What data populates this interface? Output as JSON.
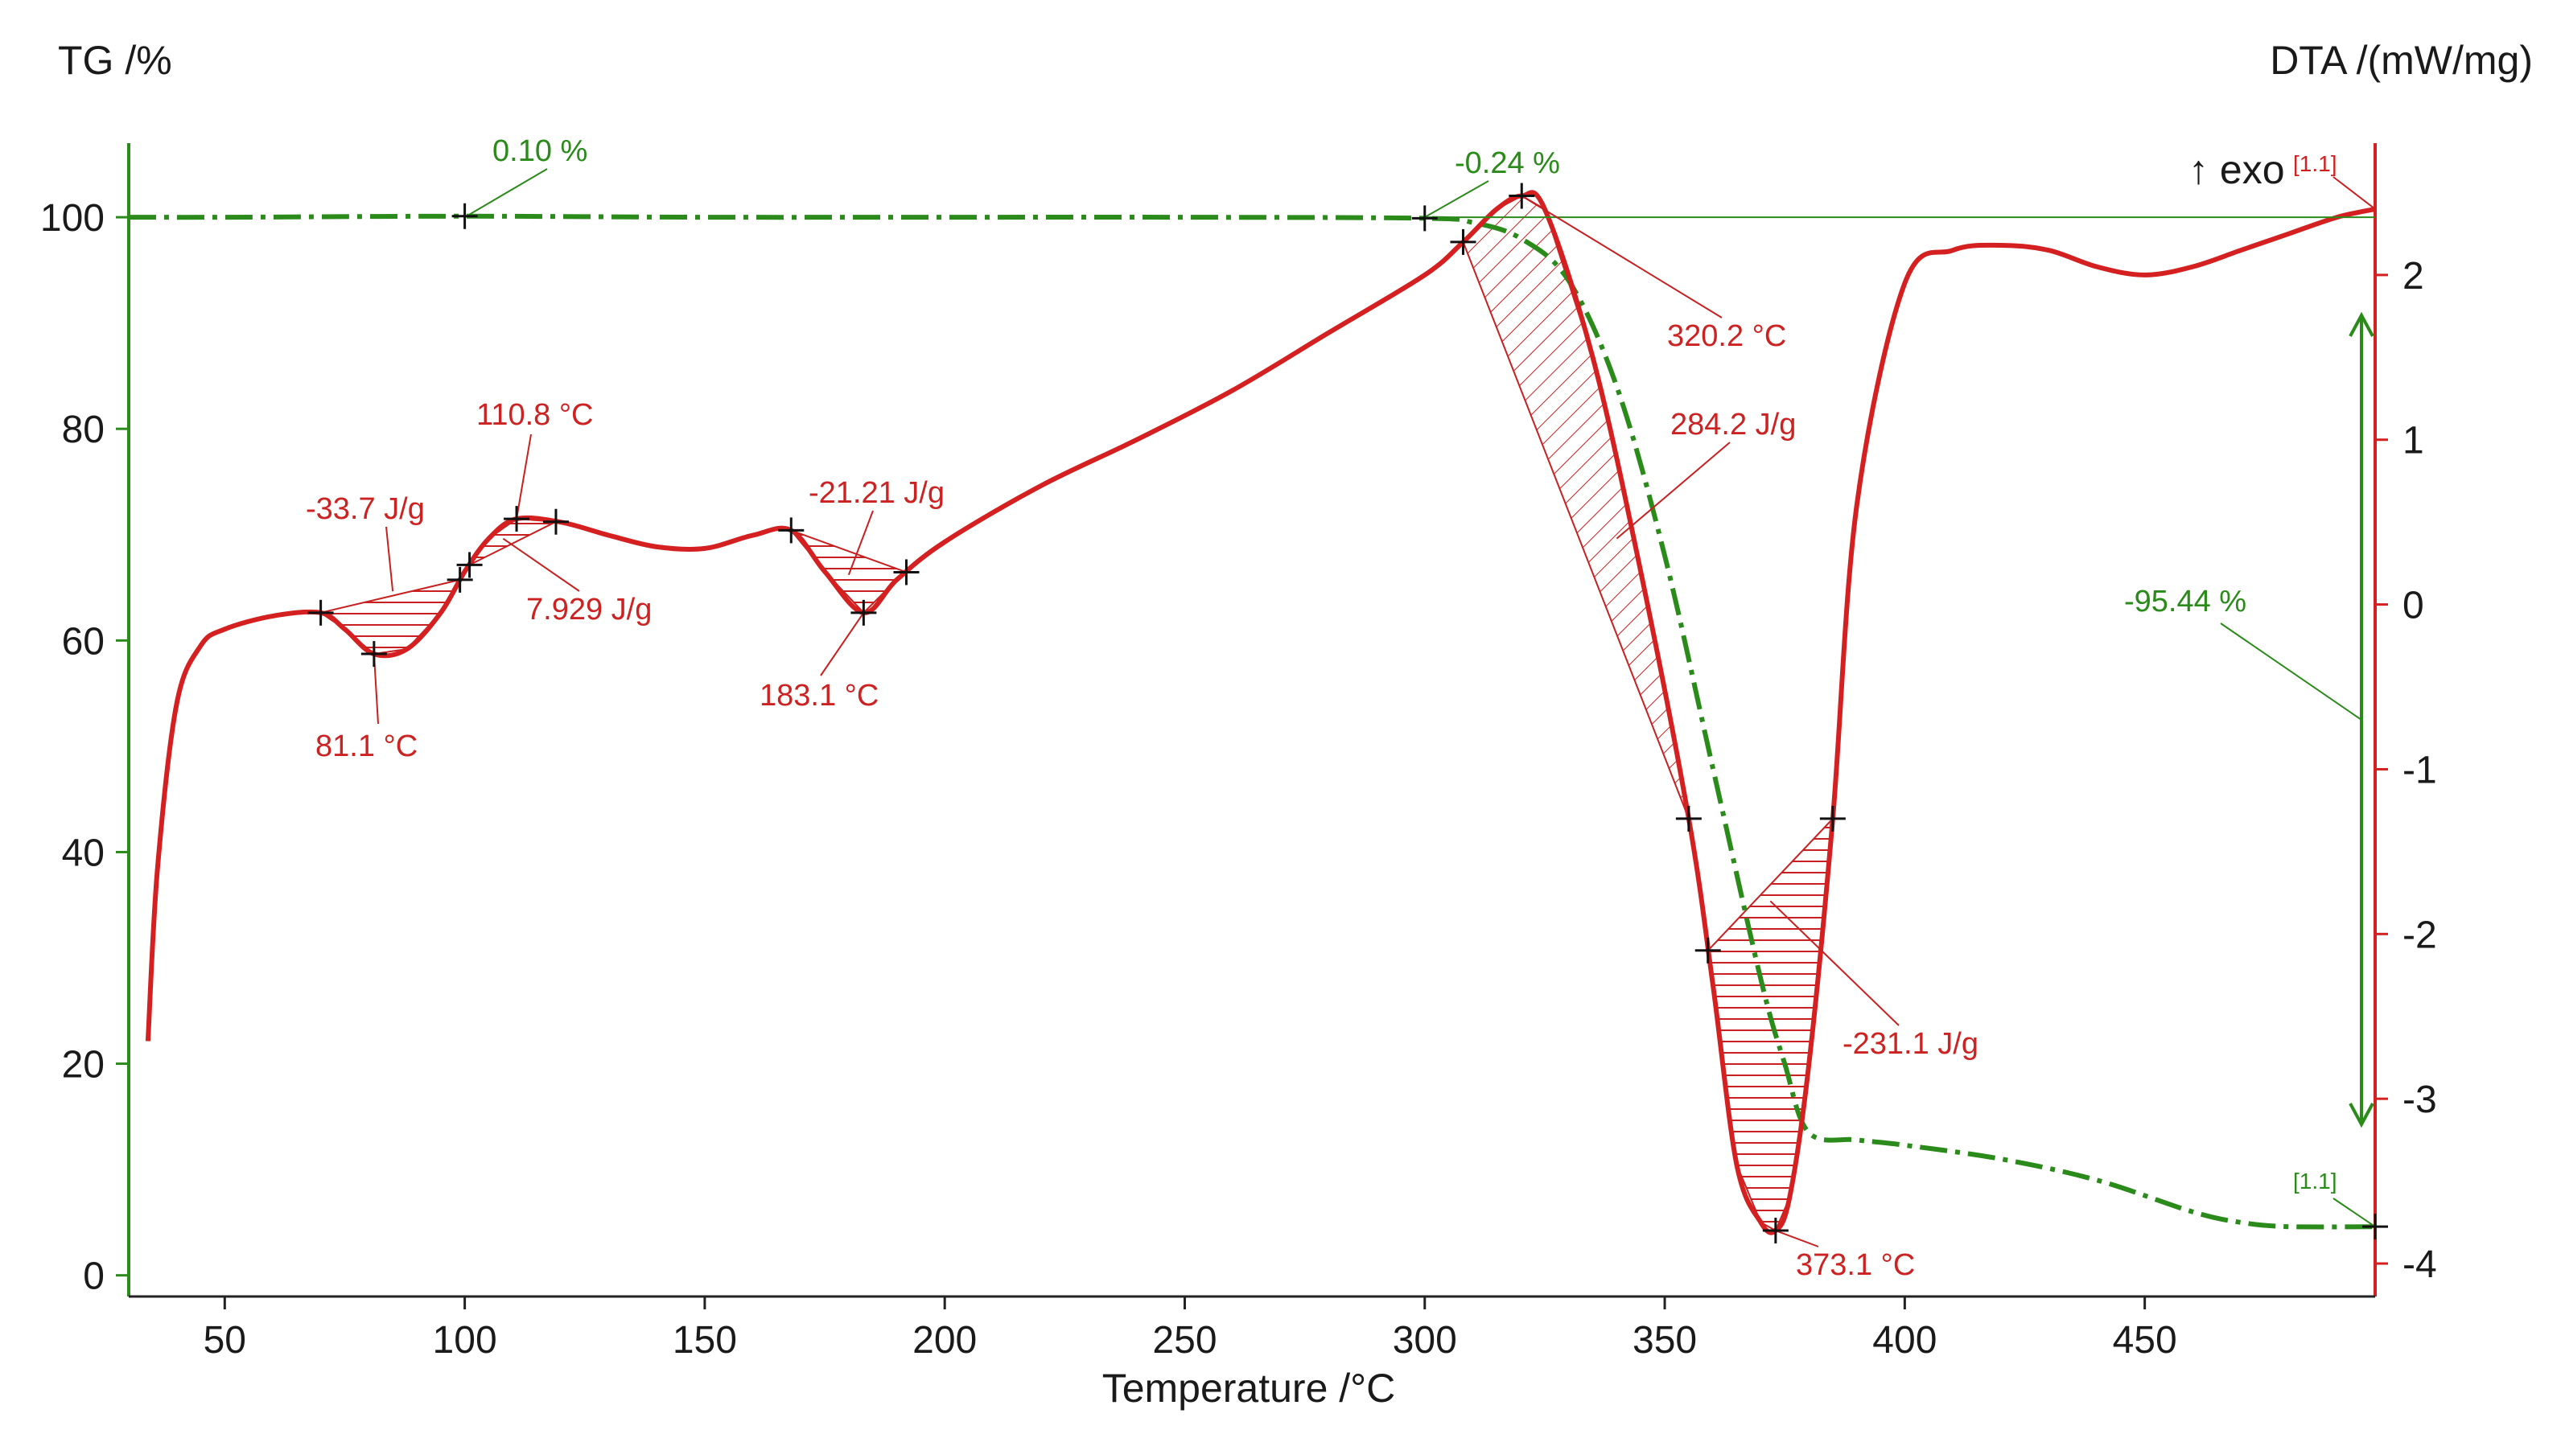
{
  "colors": {
    "tg": "#2a8a1a",
    "dta": "#d42020",
    "marker": "#111111"
  },
  "chart_data": {
    "type": "line",
    "title": "",
    "xlabel": "Temperature /°C",
    "ylabel_left": "TG /%",
    "ylabel_right": "DTA /(mW/mg)",
    "xlim": [
      30,
      498
    ],
    "ylim_left": [
      -2,
      107
    ],
    "ylim_right": [
      -4.2,
      2.8
    ],
    "x_ticks": [
      50,
      100,
      150,
      200,
      250,
      300,
      350,
      400,
      450
    ],
    "y_left_ticks": [
      0,
      20,
      40,
      60,
      80,
      100
    ],
    "y_right_ticks": [
      2,
      1,
      0,
      -1,
      -2,
      -3,
      -4
    ],
    "exo_label": "↑ exo",
    "series": [
      {
        "name": "TG",
        "axis": "left",
        "style": "dash-dot",
        "x": [
          30,
          50,
          100,
          150,
          200,
          250,
          300,
          310,
          320,
          330,
          340,
          350,
          360,
          370,
          375,
          380,
          390,
          400,
          420,
          440,
          460,
          470,
          480,
          498
        ],
        "y": [
          100,
          100,
          100.1,
          100,
          100,
          100,
          99.9,
          99.5,
          98,
          94,
          84,
          68,
          48,
          28,
          20,
          13.5,
          12.8,
          12.3,
          11,
          9,
          6,
          5,
          4.6,
          4.6
        ]
      },
      {
        "name": "DTA",
        "axis": "right",
        "style": "solid",
        "x": [
          34,
          36,
          40,
          45,
          50,
          60,
          70,
          75,
          81.1,
          88,
          95,
          100,
          105,
          110.8,
          120,
          130,
          140,
          150,
          160,
          168,
          175,
          183.1,
          190,
          200,
          220,
          240,
          260,
          280,
          300,
          308,
          315,
          320.2,
          325,
          335,
          345,
          355,
          360,
          365,
          370,
          373.1,
          376,
          380,
          385,
          390,
          400,
          410,
          420,
          430,
          440,
          450,
          460,
          470,
          480,
          490,
          498
        ],
        "y": [
          -2.65,
          -1.6,
          -0.6,
          -0.25,
          -0.15,
          -0.07,
          -0.05,
          -0.15,
          -0.3,
          -0.27,
          -0.05,
          0.2,
          0.4,
          0.52,
          0.5,
          0.42,
          0.35,
          0.34,
          0.42,
          0.45,
          0.2,
          -0.05,
          0.15,
          0.38,
          0.72,
          1.0,
          1.3,
          1.65,
          2.0,
          2.2,
          2.4,
          2.48,
          2.4,
          1.5,
          0.2,
          -1.3,
          -2.3,
          -3.4,
          -3.75,
          -3.8,
          -3.6,
          -2.8,
          -1.3,
          0.6,
          1.95,
          2.15,
          2.18,
          2.15,
          2.05,
          2.0,
          2.05,
          2.15,
          2.25,
          2.35,
          2.4
        ]
      }
    ],
    "annotations": [
      {
        "text": "0.10 %",
        "series": "TG"
      },
      {
        "text": "-0.24 %",
        "series": "TG"
      },
      {
        "text": "-95.44 %",
        "series": "TG"
      },
      {
        "text": "[1.1]",
        "series": "TG"
      },
      {
        "text": "[1.1]",
        "series": "DTA"
      },
      {
        "text": "-33.7 J/g",
        "series": "DTA"
      },
      {
        "text": "81.1 °C",
        "series": "DTA"
      },
      {
        "text": "110.8 °C",
        "series": "DTA"
      },
      {
        "text": "7.929 J/g",
        "series": "DTA"
      },
      {
        "text": "-21.21 J/g",
        "series": "DTA"
      },
      {
        "text": "183.1 °C",
        "series": "DTA"
      },
      {
        "text": "320.2 °C",
        "series": "DTA"
      },
      {
        "text": "284.2 J/g",
        "series": "DTA"
      },
      {
        "text": "-231.1 J/g",
        "series": "DTA"
      },
      {
        "text": "373.1 °C",
        "series": "DTA"
      }
    ]
  }
}
